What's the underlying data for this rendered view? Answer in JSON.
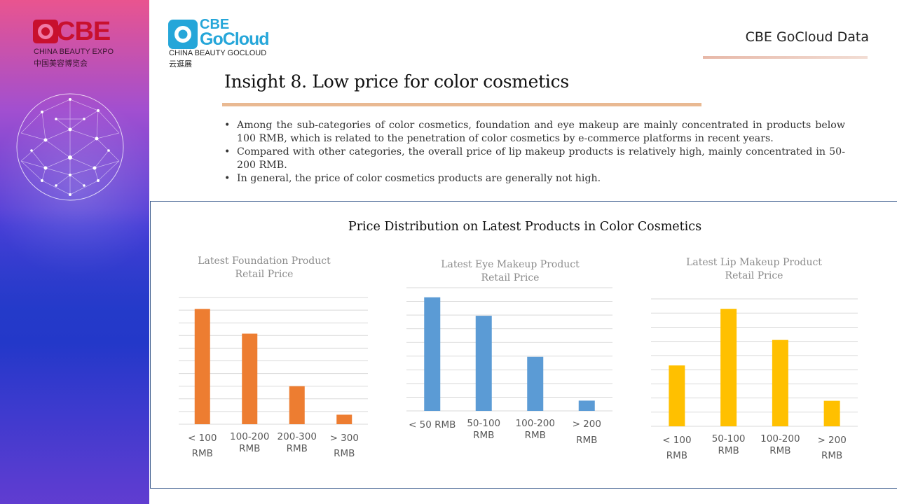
{
  "logos": {
    "cbe": {
      "word": "CBE",
      "subtitle": "CHINA BEAUTY EXPO",
      "chinese": "中国美容博览会"
    },
    "gocloud": {
      "word_line1": "CBE",
      "word_line2": "GoCloud",
      "subtitle": "CHINA BEAUTY GOCLOUD",
      "chinese": "云逛展"
    }
  },
  "header": {
    "brand": "CBE GoCloud Data",
    "title": "Insight 8. Low price for color cosmetics"
  },
  "bullets": [
    "Among the sub-categories of color cosmetics, foundation and eye makeup are mainly concentrated in products below 100 RMB, which is related to the penetration of color cosmetics by e-commerce platforms in recent years.",
    "Compared with other categories, the overall price of lip makeup products is relatively high, mainly concentrated in 50-200 RMB.",
    "In general, the price of color cosmetics products are generally not high."
  ],
  "chart_title": "Price Distribution on Latest Products in Color Cosmetics",
  "colors": {
    "foundation": "#ed7d31",
    "eye": "#5b9bd5",
    "lip": "#ffc000",
    "grid": "#d9d9d9",
    "title_accent": "#e9b992"
  },
  "chart_data": [
    {
      "type": "bar",
      "title": "Latest Foundation Product Retail Price",
      "categories": [
        "< 100 RMB",
        "100-200 RMB",
        "200-300 RMB",
        "> 300 RMB"
      ],
      "values": [
        9.1,
        7.15,
        3.0,
        0.75
      ],
      "ylim": [
        0,
        10
      ],
      "grid": true,
      "legend": "none",
      "color": "#ed7d31"
    },
    {
      "type": "bar",
      "title": "Latest Eye Makeup Product Retail Price",
      "categories": [
        "< 50 RMB",
        "50-100 RMB",
        "100-200 RMB",
        "> 200 RMB"
      ],
      "values": [
        8.3,
        6.95,
        3.95,
        0.75
      ],
      "ylim": [
        0,
        9
      ],
      "grid": true,
      "legend": "none",
      "color": "#5b9bd5"
    },
    {
      "type": "bar",
      "title": "Latest Lip Makeup Product Retail Price",
      "categories": [
        "< 100 RMB",
        "50-100 RMB",
        "100-200 RMB",
        "> 200 RMB"
      ],
      "values": [
        4.3,
        8.3,
        6.1,
        1.8
      ],
      "ylim": [
        0,
        9
      ],
      "grid": true,
      "legend": "none",
      "color": "#ffc000"
    }
  ]
}
